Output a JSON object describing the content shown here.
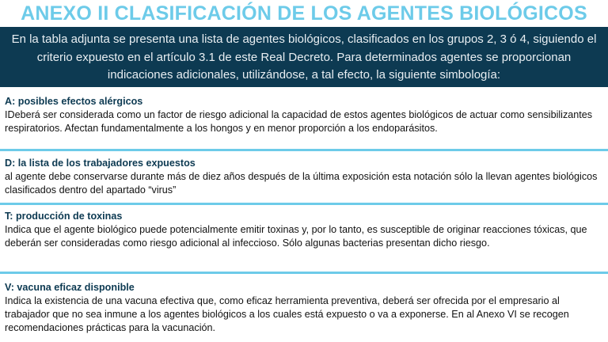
{
  "title": "ANEXO II CLASIFICACIÓN DE LOS AGENTES BIOLÓGICOS",
  "intro": "En la tabla adjunta se presenta una lista de agentes biológicos, clasificados en los grupos 2, 3 ó 4, siguiendo el criterio expuesto en el artículo 3.1 de este Real Decreto. Para determinados agentes se proporcionan indicaciones adicionales, utilizándose, a tal efecto, la siguiente simbología:",
  "sections": [
    {
      "heading": "A: posibles efectos alérgicos",
      "text": "IDeberá ser considerada como un factor de riesgo adicional la capacidad de estos agentes biológicos de actuar como sensibilizantes respiratorios. Afectan fundamentalmente a los hongos y en menor proporción a los endoparásitos."
    },
    {
      "heading": "D: la lista de los trabajadores expuestos",
      "text": "al agente debe conservarse durante más de diez años después de la última exposición esta notación sólo la llevan agentes biológicos clasificados dentro del apartado “virus”"
    },
    {
      "heading": "T: producción de toxinas",
      "text": "Indica que el agente biológico puede potencialmente emitir toxinas y, por lo tanto, es susceptible de originar reacciones tóxicas, que deberán ser consideradas como riesgo adicional al infeccioso. Sólo algunas bacterias presentan dicho riesgo."
    },
    {
      "heading": "V: vacuna eficaz disponible",
      "text": "Indica la existencia de una vacuna efectiva que, como eficaz herramienta preventiva, deberá ser ofrecida por el empresario al trabajador que no sea inmune a los agentes biológicos a los cuales está expuesto o va a exponerse. En al Anexo VI se recogen recomendaciones prácticas para la vacunación."
    }
  ],
  "colors": {
    "accent": "#6dcbe9",
    "dark": "#0d3a52"
  }
}
